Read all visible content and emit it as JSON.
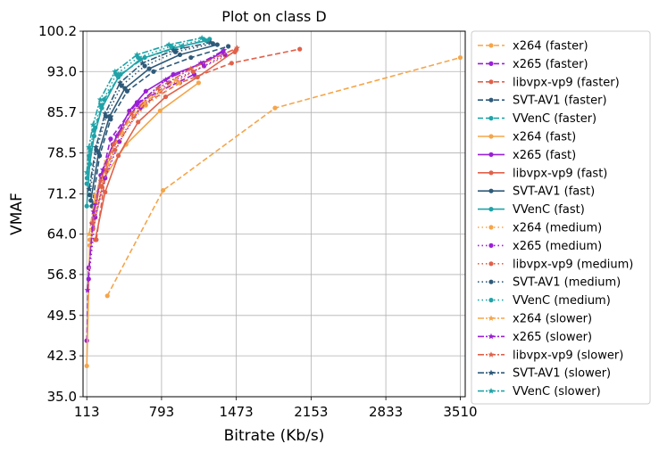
{
  "chart_data": {
    "type": "line",
    "title": "Plot on class D",
    "xlabel": "Bitrate (Kb/s)",
    "ylabel": "VMAF",
    "xlim": [
      113,
      3510
    ],
    "ylim": [
      35.0,
      100.2
    ],
    "xticks": [
      "113",
      "793",
      "1473",
      "2153",
      "2833",
      "3510"
    ],
    "yticks": [
      "35.0",
      "42.3",
      "49.5",
      "56.8",
      "64.0",
      "71.2",
      "78.5",
      "85.7",
      "93.0",
      "100.2"
    ],
    "grid": true,
    "legend_position": "outside-right",
    "colors": {
      "x264": "#f5a54a",
      "x265": "#9a1fd6",
      "libvpx-vp9": "#e0614a",
      "SVT-AV1": "#2e5a79",
      "VVenC": "#1fa3a8"
    },
    "series": [
      {
        "name": "x264 (faster)",
        "encoder": "x264",
        "preset": "faster",
        "x": [
          300,
          806,
          1825,
          3510
        ],
        "y": [
          53,
          71.8,
          86.5,
          95.5
        ]
      },
      {
        "name": "x265 (faster)",
        "encoder": "x265",
        "preset": "faster",
        "x": [
          113,
          130,
          190,
          330,
          570,
          1090
        ],
        "y": [
          45,
          58,
          69.5,
          81,
          87.5,
          92.5
        ]
      },
      {
        "name": "libvpx-vp9 (faster)",
        "encoder": "libvpx-vp9",
        "preset": "faster",
        "x": [
          200,
          290,
          410,
          620,
          960,
          1430,
          2050
        ],
        "y": [
          63,
          75.5,
          82,
          87,
          91,
          94.5,
          97
        ]
      },
      {
        "name": "SVT-AV1 (faster)",
        "encoder": "SVT-AV1",
        "preset": "faster",
        "x": [
          160,
          230,
          330,
          480,
          720,
          1060,
          1400
        ],
        "y": [
          69,
          78,
          84.5,
          89.5,
          93,
          95.5,
          97.5
        ]
      },
      {
        "name": "VVenC (faster)",
        "encoder": "VVenC",
        "preset": "faster",
        "x": [
          115,
          145,
          190,
          270,
          420,
          640,
          980,
          1230
        ],
        "y": [
          74,
          79,
          83,
          88,
          92.5,
          95.5,
          97.5,
          98.8
        ]
      },
      {
        "name": "x264 (fast)",
        "encoder": "x264",
        "preset": "fast",
        "x": [
          113,
          140,
          270,
          470,
          780,
          1130
        ],
        "y": [
          40.5,
          62,
          74,
          80,
          86,
          91
        ]
      },
      {
        "name": "x265 (fast)",
        "encoder": "x265",
        "preset": "fast",
        "x": [
          160,
          240,
          350,
          500,
          650,
          900,
          1170,
          1350
        ],
        "y": [
          66,
          74.5,
          80,
          86,
          89.5,
          92.5,
          94.5,
          96.5
        ]
      },
      {
        "name": "libvpx-vp9 (fast)",
        "encoder": "libvpx-vp9",
        "preset": "fast",
        "x": [
          190,
          280,
          400,
          580,
          830,
          1120,
          1470
        ],
        "y": [
          63,
          71.5,
          78,
          84,
          88.5,
          92,
          96.8
        ]
      },
      {
        "name": "SVT-AV1 (fast)",
        "encoder": "SVT-AV1",
        "preset": "fast",
        "x": [
          150,
          220,
          320,
          460,
          680,
          960,
          1300
        ],
        "y": [
          70,
          78.5,
          85,
          90,
          93.5,
          96,
          97.8
        ]
      },
      {
        "name": "VVenC (fast)",
        "encoder": "VVenC",
        "preset": "fast",
        "x": [
          113,
          140,
          180,
          250,
          400,
          600,
          900,
          1200
        ],
        "y": [
          69,
          76.5,
          81.5,
          86.5,
          92,
          95.2,
          97.2,
          98.5
        ]
      },
      {
        "name": "x264 (medium)",
        "encoder": "x264",
        "preset": "medium",
        "x": [
          140,
          200,
          300,
          440,
          650,
          950
        ],
        "y": [
          63,
          70,
          76.5,
          82,
          87,
          91
        ]
      },
      {
        "name": "x265 (medium)",
        "encoder": "x265",
        "preset": "medium",
        "x": [
          130,
          190,
          280,
          410,
          600,
          860,
          1180,
          1370
        ],
        "y": [
          56,
          67,
          74,
          80.5,
          86.5,
          91,
          94,
          96
        ]
      },
      {
        "name": "libvpx-vp9 (medium)",
        "encoder": "libvpx-vp9",
        "preset": "medium",
        "x": [
          170,
          250,
          370,
          540,
          780,
          1080,
          1460
        ],
        "y": [
          65,
          72.5,
          79,
          85,
          89.5,
          93,
          96.5
        ]
      },
      {
        "name": "SVT-AV1 (medium)",
        "encoder": "SVT-AV1",
        "preset": "medium",
        "x": [
          140,
          200,
          290,
          430,
          640,
          920,
          1260
        ],
        "y": [
          71,
          79,
          85,
          90.5,
          94,
          96.5,
          98
        ]
      },
      {
        "name": "VVenC (medium)",
        "encoder": "VVenC",
        "preset": "medium",
        "x": [
          113,
          135,
          175,
          240,
          380,
          580,
          880,
          1180
        ],
        "y": [
          73,
          78,
          82.5,
          87,
          92.5,
          95.5,
          97.5,
          98.7
        ]
      },
      {
        "name": "x264 (slower)",
        "encoder": "x264",
        "preset": "slower",
        "x": [
          135,
          190,
          290,
          430,
          640,
          920
        ],
        "y": [
          64,
          71,
          77,
          82.5,
          87.5,
          91.5
        ]
      },
      {
        "name": "x265 (slower)",
        "encoder": "x265",
        "preset": "slower",
        "x": [
          120,
          175,
          260,
          385,
          570,
          830,
          1150,
          1360
        ],
        "y": [
          54,
          68,
          75.5,
          81.5,
          87,
          91.5,
          94.5,
          96.8
        ]
      },
      {
        "name": "libvpx-vp9 (slower)",
        "encoder": "libvpx-vp9",
        "preset": "slower",
        "x": [
          165,
          240,
          355,
          520,
          760,
          1060,
          1480
        ],
        "y": [
          66,
          73.5,
          80,
          85.5,
          90,
          93.5,
          97.2
        ]
      },
      {
        "name": "SVT-AV1 (slower)",
        "encoder": "SVT-AV1",
        "preset": "slower",
        "x": [
          135,
          195,
          280,
          415,
          620,
          900,
          1240
        ],
        "y": [
          72,
          79.5,
          85.5,
          91,
          94.5,
          96.8,
          98.2
        ]
      },
      {
        "name": "VVenC (slower)",
        "encoder": "VVenC",
        "preset": "slower",
        "x": [
          113,
          132,
          170,
          235,
          370,
          570,
          860,
          1160
        ],
        "y": [
          75,
          79.5,
          83.5,
          88,
          93,
          96,
          97.8,
          99
        ]
      }
    ]
  }
}
